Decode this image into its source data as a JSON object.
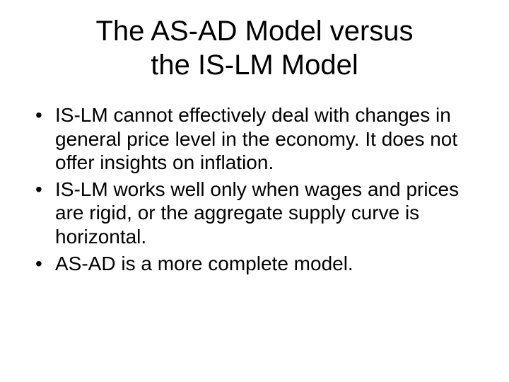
{
  "title_line1": "The AS-AD Model versus",
  "title_line2": "the IS-LM Model",
  "bullets": [
    "IS-LM cannot effectively deal with changes in general price level in the economy. It does not offer insights on inflation.",
    "IS-LM works well only when wages and prices are rigid, or the aggregate supply curve is horizontal.",
    "AS-AD is a more complete model."
  ]
}
